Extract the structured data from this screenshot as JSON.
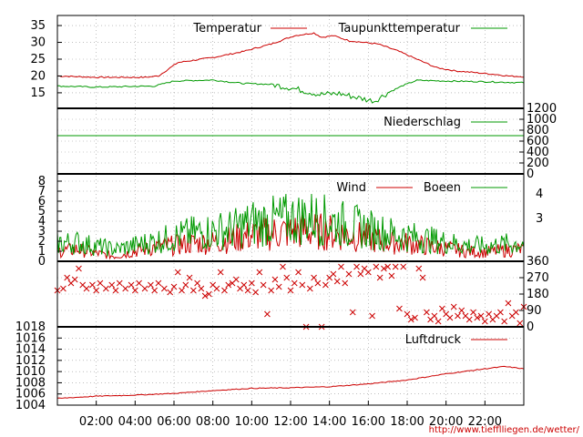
{
  "chart_data": [
    {
      "type": "line",
      "title": "",
      "xlabel": "",
      "ylabel": "",
      "ylim": [
        12,
        38
      ],
      "yticks": [
        "15",
        "20",
        "25",
        "30",
        "35"
      ],
      "grid": true,
      "legend": "top",
      "series": [
        {
          "name": "Temperatur",
          "color": "#cc0000",
          "t": [
            0,
            2,
            4.5,
            5.2,
            6.2,
            8,
            9.5,
            11,
            12.2,
            13.2,
            13.6,
            14.2,
            15,
            16.5,
            17.5,
            18.5,
            19.5,
            20.5,
            21.5,
            22.5,
            23.2,
            24
          ],
          "values": [
            20,
            19.6,
            19.6,
            20,
            24,
            25.5,
            27.2,
            29.5,
            32,
            32.8,
            31.5,
            32,
            30.5,
            29.5,
            27.5,
            25,
            22.5,
            21.5,
            21,
            20.5,
            20,
            19.8
          ]
        },
        {
          "name": "Taupunkttemperatur",
          "color": "#009900",
          "t": [
            0,
            2,
            5,
            6,
            8,
            9.5,
            11,
            12,
            13.5,
            14.5,
            15.5,
            16.3,
            17,
            17.8,
            18.5,
            20,
            22,
            24
          ],
          "values": [
            17,
            16.7,
            17,
            18.5,
            18.8,
            17.8,
            17.5,
            16.5,
            14.5,
            14.8,
            13.5,
            12.5,
            15,
            17.2,
            18.7,
            18.5,
            18.3,
            18
          ]
        }
      ]
    },
    {
      "type": "line",
      "title": "",
      "xlabel": "",
      "ylabel": "",
      "ylim": [
        0,
        1200
      ],
      "yticks": [
        "0",
        "200",
        "400",
        "600",
        "800",
        "1000",
        "1200"
      ],
      "legend": "top-right",
      "series": [
        {
          "name": "Niederschlag",
          "color": "#009900",
          "t": [
            0,
            24
          ],
          "values": [
            700,
            700
          ]
        }
      ]
    },
    {
      "type": "line",
      "title": "",
      "xlabel": "",
      "ylabel": "",
      "ylim": [
        0,
        8
      ],
      "yticks": [
        "0",
        "1",
        "2",
        "3",
        "4",
        "5",
        "6",
        "7",
        "8"
      ],
      "yticks_right": [
        "3",
        "4"
      ],
      "legend": "top-right",
      "series": [
        {
          "name": "Wind",
          "color": "#cc0000",
          "t": [
            0,
            1,
            2,
            3,
            4,
            5,
            6,
            7,
            8,
            9,
            10,
            11,
            12,
            13,
            14,
            15,
            16,
            17,
            18,
            19,
            20,
            21,
            22,
            23,
            24
          ],
          "values": [
            1,
            1.2,
            0.8,
            0.5,
            1,
            1.4,
            1.6,
            1.8,
            1.9,
            2.2,
            2.6,
            2.8,
            3,
            3,
            2.9,
            2.6,
            2.3,
            1.9,
            1.8,
            1.5,
            1.3,
            1,
            0.9,
            1.1,
            1.2
          ]
        },
        {
          "name": "Boeen",
          "color": "#009900",
          "t": [
            0,
            1,
            2,
            3,
            4,
            5,
            6,
            7,
            8,
            9,
            10,
            11,
            12,
            13,
            14,
            15,
            16,
            17,
            18,
            19,
            20,
            21,
            22,
            23,
            24
          ],
          "values": [
            1.8,
            1.9,
            1.5,
            1.2,
            1.6,
            2,
            2.4,
            2.8,
            3,
            3.2,
            3.8,
            4,
            4.2,
            4.4,
            4,
            3.6,
            3.2,
            2.8,
            2.5,
            2.2,
            1.9,
            1.6,
            1.5,
            1.7,
            1.8
          ]
        }
      ]
    },
    {
      "type": "scatter",
      "title": "",
      "xlabel": "",
      "ylabel": "",
      "ylim": [
        0,
        360
      ],
      "yticks": [
        "0",
        "90",
        "180",
        "270",
        "360"
      ],
      "marker": "x",
      "color": "#cc0000",
      "points": [
        [
          0,
          200
        ],
        [
          0.3,
          210
        ],
        [
          0.5,
          270
        ],
        [
          0.7,
          240
        ],
        [
          0.9,
          260
        ],
        [
          1.1,
          320
        ],
        [
          1.3,
          230
        ],
        [
          1.5,
          210
        ],
        [
          1.8,
          230
        ],
        [
          2,
          200
        ],
        [
          2.2,
          240
        ],
        [
          2.5,
          210
        ],
        [
          2.8,
          230
        ],
        [
          3,
          200
        ],
        [
          3.2,
          240
        ],
        [
          3.5,
          210
        ],
        [
          3.8,
          230
        ],
        [
          4,
          200
        ],
        [
          4.2,
          240
        ],
        [
          4.5,
          210
        ],
        [
          4.8,
          230
        ],
        [
          5,
          200
        ],
        [
          5.2,
          240
        ],
        [
          5.5,
          210
        ],
        [
          5.8,
          190
        ],
        [
          6,
          220
        ],
        [
          6.2,
          300
        ],
        [
          6.4,
          200
        ],
        [
          6.6,
          230
        ],
        [
          6.8,
          270
        ],
        [
          7,
          200
        ],
        [
          7.2,
          240
        ],
        [
          7.4,
          210
        ],
        [
          7.6,
          170
        ],
        [
          7.8,
          180
        ],
        [
          8,
          230
        ],
        [
          8.2,
          210
        ],
        [
          8.4,
          300
        ],
        [
          8.6,
          200
        ],
        [
          8.8,
          230
        ],
        [
          9,
          240
        ],
        [
          9.2,
          260
        ],
        [
          9.4,
          210
        ],
        [
          9.6,
          230
        ],
        [
          9.8,
          200
        ],
        [
          10,
          240
        ],
        [
          10.2,
          190
        ],
        [
          10.4,
          300
        ],
        [
          10.6,
          230
        ],
        [
          10.8,
          70
        ],
        [
          11,
          200
        ],
        [
          11.2,
          260
        ],
        [
          11.4,
          220
        ],
        [
          11.6,
          330
        ],
        [
          11.8,
          270
        ],
        [
          12,
          200
        ],
        [
          12.2,
          240
        ],
        [
          12.4,
          300
        ],
        [
          12.6,
          230
        ],
        [
          12.8,
          0
        ],
        [
          13,
          210
        ],
        [
          13.2,
          270
        ],
        [
          13.4,
          240
        ],
        [
          13.6,
          0
        ],
        [
          13.8,
          230
        ],
        [
          14,
          270
        ],
        [
          14.2,
          290
        ],
        [
          14.4,
          250
        ],
        [
          14.6,
          330
        ],
        [
          14.8,
          240
        ],
        [
          15,
          290
        ],
        [
          15.2,
          80
        ],
        [
          15.4,
          330
        ],
        [
          15.6,
          290
        ],
        [
          15.8,
          320
        ],
        [
          16,
          300
        ],
        [
          16.2,
          60
        ],
        [
          16.4,
          330
        ],
        [
          16.6,
          270
        ],
        [
          16.8,
          320
        ],
        [
          17,
          330
        ],
        [
          17.2,
          280
        ],
        [
          17.4,
          330
        ],
        [
          17.6,
          100
        ],
        [
          17.8,
          330
        ],
        [
          18,
          70
        ],
        [
          18.2,
          40
        ],
        [
          18.4,
          50
        ],
        [
          18.6,
          320
        ],
        [
          18.8,
          270
        ],
        [
          19,
          80
        ],
        [
          19.2,
          40
        ],
        [
          19.4,
          60
        ],
        [
          19.6,
          30
        ],
        [
          19.8,
          100
        ],
        [
          20,
          70
        ],
        [
          20.2,
          50
        ],
        [
          20.4,
          110
        ],
        [
          20.6,
          60
        ],
        [
          20.8,
          90
        ],
        [
          21,
          60
        ],
        [
          21.2,
          40
        ],
        [
          21.4,
          80
        ],
        [
          21.6,
          50
        ],
        [
          21.8,
          60
        ],
        [
          22,
          30
        ],
        [
          22.2,
          70
        ],
        [
          22.4,
          40
        ],
        [
          22.6,
          60
        ],
        [
          22.8,
          80
        ],
        [
          23,
          30
        ],
        [
          23.2,
          130
        ],
        [
          23.4,
          60
        ],
        [
          23.6,
          80
        ],
        [
          23.8,
          20
        ],
        [
          24,
          110
        ]
      ]
    },
    {
      "type": "line",
      "title": "",
      "xlabel": "",
      "ylabel": "",
      "ylim": [
        1004,
        1018
      ],
      "yticks": [
        "1004",
        "1006",
        "1008",
        "1010",
        "1012",
        "1014",
        "1016",
        "1018"
      ],
      "legend": "top-right",
      "series": [
        {
          "name": "Luftdruck",
          "color": "#cc0000",
          "t": [
            0,
            2,
            4,
            6,
            8,
            10,
            12,
            14,
            16,
            18,
            20,
            22,
            23,
            24
          ],
          "values": [
            1005.2,
            1005.6,
            1005.8,
            1006.1,
            1006.6,
            1007,
            1007.1,
            1007.3,
            1007.8,
            1008.5,
            1009.6,
            1010.5,
            1010.9,
            1010.5
          ]
        }
      ]
    }
  ],
  "x_axis": {
    "range": [
      0,
      24
    ],
    "ticks": [
      {
        "t": 2,
        "label": "02:00"
      },
      {
        "t": 4,
        "label": "04:00"
      },
      {
        "t": 6,
        "label": "06:00"
      },
      {
        "t": 8,
        "label": "08:00"
      },
      {
        "t": 10,
        "label": "10:00"
      },
      {
        "t": 12,
        "label": "12:00"
      },
      {
        "t": 14,
        "label": "14:00"
      },
      {
        "t": 16,
        "label": "16:00"
      },
      {
        "t": 18,
        "label": "18:00"
      },
      {
        "t": 20,
        "label": "20:00"
      },
      {
        "t": 22,
        "label": "22:00"
      }
    ]
  },
  "footer_url": "http://www.tiefflliegen.de/wetter/"
}
